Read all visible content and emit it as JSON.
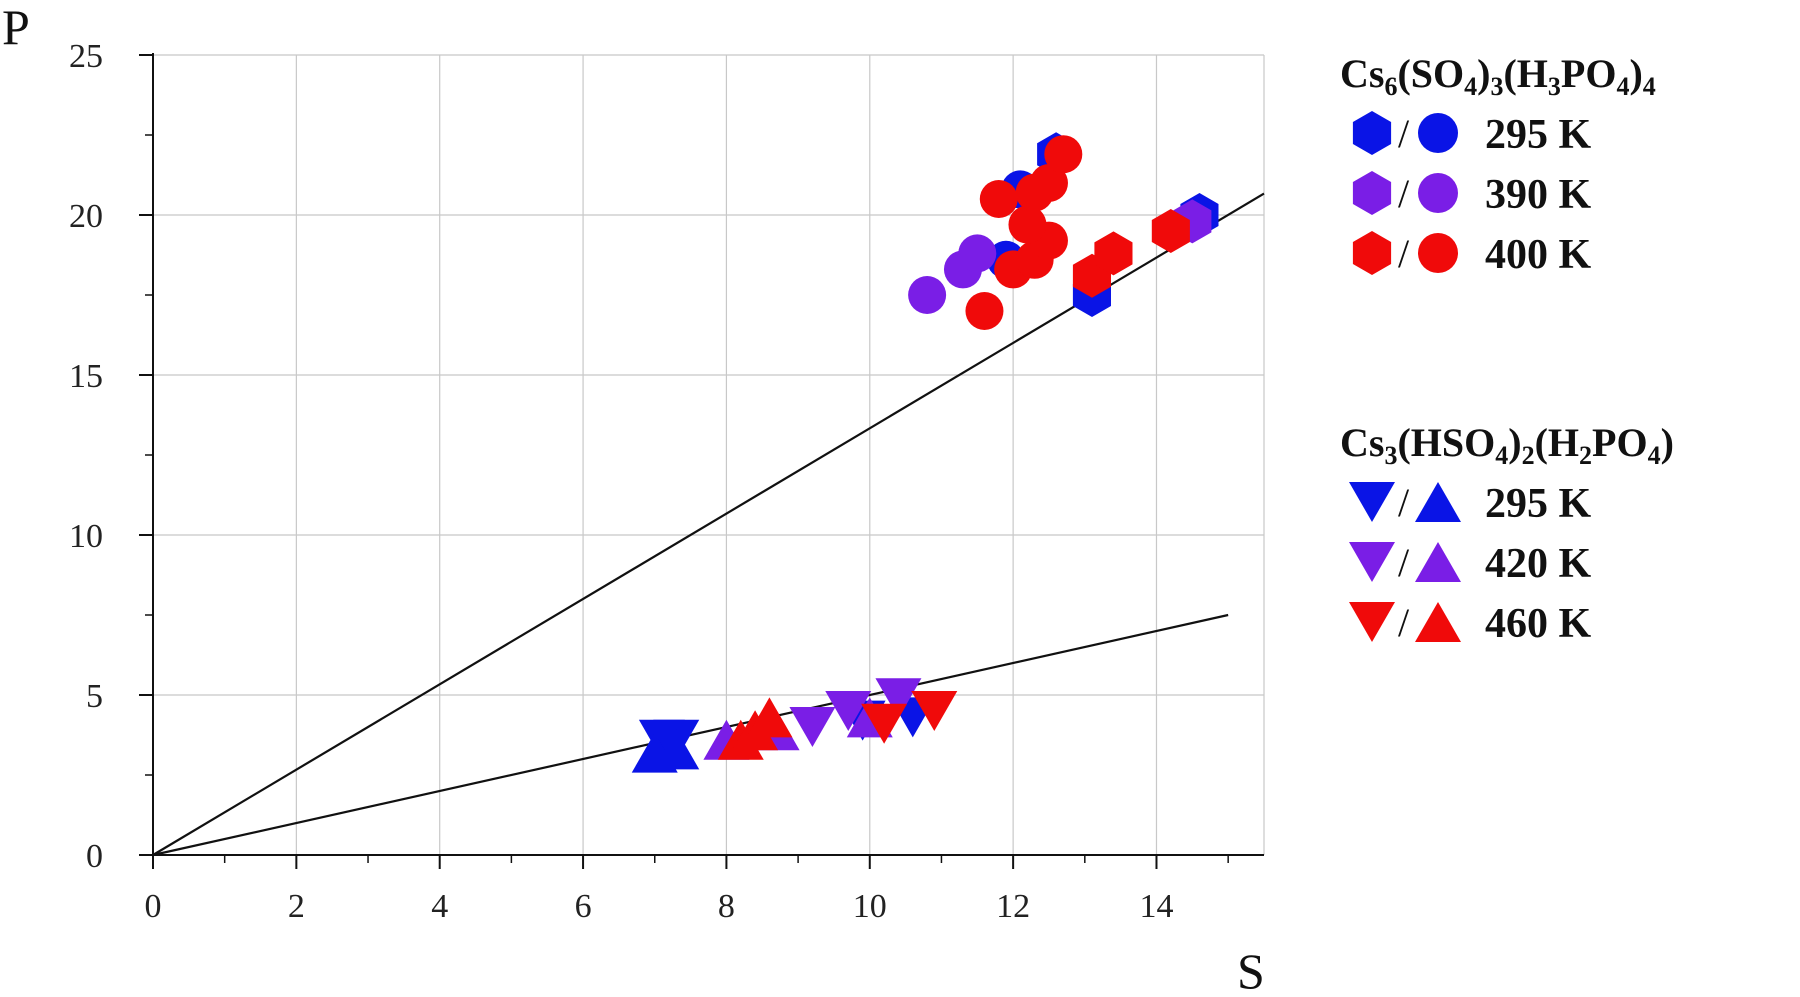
{
  "chart_data": {
    "type": "scatter",
    "xlabel": "S",
    "ylabel": "P",
    "xlim": [
      0,
      15.5
    ],
    "ylim": [
      0,
      25
    ],
    "x_ticks": [
      0,
      2,
      4,
      6,
      8,
      10,
      12,
      14
    ],
    "y_ticks": [
      0,
      5,
      10,
      15,
      20,
      25
    ],
    "grid": true,
    "colors": {
      "c295": "#0a14e6",
      "c390": "#7a1ee6",
      "c400": "#f00a0a"
    },
    "lines": [
      {
        "x": [
          0,
          15.5
        ],
        "y": [
          0,
          20.67
        ]
      },
      {
        "x": [
          0,
          15.0
        ],
        "y": [
          0,
          7.5
        ]
      }
    ],
    "legend": {
      "placement": "right",
      "groups": [
        {
          "title_parts": [
            {
              "t": "Cs"
            },
            {
              "t": "6",
              "sub": true
            },
            {
              "t": "(SO"
            },
            {
              "t": "4",
              "sub": true
            },
            {
              "t": ")"
            },
            {
              "t": "3",
              "sub": true
            },
            {
              "t": "(H"
            },
            {
              "t": "3",
              "sub": true
            },
            {
              "t": "PO"
            },
            {
              "t": "4",
              "sub": true
            },
            {
              "t": ")"
            },
            {
              "t": "4",
              "sub": true
            }
          ],
          "separator": "/",
          "entries": [
            {
              "label": "295 K",
              "color": "#0a14e6",
              "markers": [
                "hexagon",
                "circle"
              ]
            },
            {
              "label": "390 K",
              "color": "#7a1ee6",
              "markers": [
                "hexagon",
                "circle"
              ]
            },
            {
              "label": "400 K",
              "color": "#f00a0a",
              "markers": [
                "hexagon",
                "circle"
              ]
            }
          ]
        },
        {
          "title_parts": [
            {
              "t": "Cs"
            },
            {
              "t": "3",
              "sub": true
            },
            {
              "t": "(HSO"
            },
            {
              "t": "4",
              "sub": true
            },
            {
              "t": ")"
            },
            {
              "t": "2",
              "sub": true
            },
            {
              "t": "(H"
            },
            {
              "t": "2",
              "sub": true
            },
            {
              "t": "PO"
            },
            {
              "t": "4",
              "sub": true
            },
            {
              "t": ")"
            }
          ],
          "separator": "/",
          "entries": [
            {
              "label": "295 K",
              "color": "#0a14e6",
              "markers": [
                "triangle-down",
                "triangle-up"
              ]
            },
            {
              "label": "420 K",
              "color": "#7a1ee6",
              "markers": [
                "triangle-down",
                "triangle-up"
              ]
            },
            {
              "label": "460 K",
              "color": "#f00a0a",
              "markers": [
                "triangle-down",
                "triangle-up"
              ]
            }
          ]
        }
      ]
    },
    "series": [
      {
        "compound": "Cs6(SO4)3(H3PO4)4",
        "temperature": "295 K",
        "marker": "hexagon",
        "color": "#0a14e6",
        "points": [
          [
            13.1,
            17.5
          ],
          [
            14.6,
            20.0
          ],
          [
            12.6,
            21.9
          ]
        ]
      },
      {
        "compound": "Cs6(SO4)3(H3PO4)4",
        "temperature": "295 K",
        "marker": "circle",
        "color": "#0a14e6",
        "points": [
          [
            12.1,
            20.8
          ],
          [
            11.9,
            18.6
          ]
        ]
      },
      {
        "compound": "Cs6(SO4)3(H3PO4)4",
        "temperature": "390 K",
        "marker": "hexagon",
        "color": "#7a1ee6",
        "points": [
          [
            14.5,
            19.8
          ]
        ]
      },
      {
        "compound": "Cs6(SO4)3(H3PO4)4",
        "temperature": "390 K",
        "marker": "circle",
        "color": "#7a1ee6",
        "points": [
          [
            10.8,
            17.5
          ],
          [
            11.3,
            18.3
          ],
          [
            11.5,
            18.8
          ]
        ]
      },
      {
        "compound": "Cs6(SO4)3(H3PO4)4",
        "temperature": "400 K",
        "marker": "hexagon",
        "color": "#f00a0a",
        "points": [
          [
            13.1,
            18.1
          ],
          [
            13.4,
            18.8
          ],
          [
            14.2,
            19.5
          ]
        ]
      },
      {
        "compound": "Cs6(SO4)3(H3PO4)4",
        "temperature": "400 K",
        "marker": "circle",
        "color": "#f00a0a",
        "points": [
          [
            11.6,
            17.0
          ],
          [
            12.0,
            18.3
          ],
          [
            12.3,
            18.6
          ],
          [
            12.5,
            19.2
          ],
          [
            12.2,
            19.7
          ],
          [
            11.8,
            20.5
          ],
          [
            12.3,
            20.7
          ],
          [
            12.5,
            21.0
          ],
          [
            12.7,
            21.9
          ]
        ]
      },
      {
        "compound": "Cs3(HSO4)2(H2PO4)",
        "temperature": "295 K",
        "marker": "triangle-down",
        "color": "#0a14e6",
        "points": [
          [
            7.1,
            3.6
          ],
          [
            7.3,
            3.6
          ],
          [
            9.9,
            4.2
          ],
          [
            10.6,
            4.3
          ]
        ]
      },
      {
        "compound": "Cs3(HSO4)2(H2PO4)",
        "temperature": "295 K",
        "marker": "triangle-up",
        "color": "#0a14e6",
        "points": [
          [
            7.0,
            3.2
          ],
          [
            7.3,
            3.3
          ]
        ]
      },
      {
        "compound": "Cs3(HSO4)2(H2PO4)",
        "temperature": "420 K",
        "marker": "triangle-down",
        "color": "#7a1ee6",
        "points": [
          [
            9.2,
            4.0
          ],
          [
            9.7,
            4.5
          ],
          [
            10.4,
            4.9
          ]
        ]
      },
      {
        "compound": "Cs3(HSO4)2(H2PO4)",
        "temperature": "420 K",
        "marker": "triangle-up",
        "color": "#7a1ee6",
        "points": [
          [
            8.0,
            3.6
          ],
          [
            8.7,
            3.9
          ],
          [
            10.0,
            4.3
          ]
        ]
      },
      {
        "compound": "Cs3(HSO4)2(H2PO4)",
        "temperature": "460 K",
        "marker": "triangle-down",
        "color": "#f00a0a",
        "points": [
          [
            10.2,
            4.1
          ],
          [
            10.9,
            4.5
          ]
        ]
      },
      {
        "compound": "Cs3(HSO4)2(H2PO4)",
        "temperature": "460 K",
        "marker": "triangle-up",
        "color": "#f00a0a",
        "points": [
          [
            8.2,
            3.6
          ],
          [
            8.4,
            3.9
          ],
          [
            8.6,
            4.3
          ]
        ]
      }
    ]
  }
}
